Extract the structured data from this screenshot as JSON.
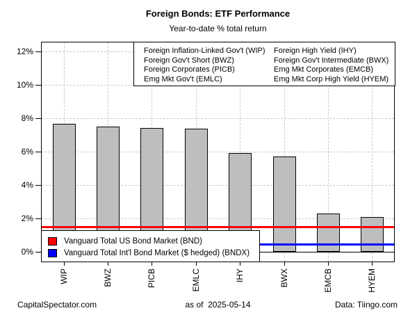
{
  "header": {
    "title": "Foreign Bonds: ETF Performance",
    "subtitle": "Year-to-date % total return"
  },
  "footer": {
    "left": "CapitalSpectator.com",
    "center": "as of  2025-05-14",
    "right": "Data: Tiingo.com"
  },
  "etf_legend": {
    "left_column": [
      "Foreign Inflation-Linked Gov't (WIP)",
      "Foreign Gov't Short (BWZ)",
      "Foreign Corporates (PICB)",
      "Emg Mkt Gov't (EMLC)"
    ],
    "right_column": [
      "Foreign High Yield (IHY)",
      "Foreign Gov't Intermediate (BWX)",
      "Emg Mkt Corporates (EMCB)",
      "Emg Mkt Corp High Yield (HYEM)"
    ]
  },
  "benchmark_legend": {
    "items": [
      {
        "label": "Vanguard Total US Bond Market (BND)",
        "color": "#ff0000"
      },
      {
        "label": "Vanguard Total Int'l Bond Market ($ hedged) (BNDX)",
        "color": "#0000ff"
      }
    ]
  },
  "chart_data": {
    "type": "bar",
    "title": "Foreign Bonds: ETF Performance",
    "subtitle": "Year-to-date % total return",
    "xlabel": "",
    "ylabel": "",
    "categories": [
      "WIP",
      "BWZ",
      "PICB",
      "EMLC",
      "IHY",
      "BWX",
      "EMCB",
      "HYEM"
    ],
    "values": [
      7.65,
      7.5,
      7.42,
      7.38,
      5.9,
      5.7,
      2.3,
      2.1
    ],
    "ylim": [
      -0.6,
      12.6
    ],
    "yticks": [
      0,
      2,
      4,
      6,
      8,
      10,
      12
    ],
    "ytick_labels": [
      "0%",
      "2%",
      "4%",
      "6%",
      "8%",
      "10%",
      "12%"
    ],
    "grid": true,
    "bar_color": "#bebebe",
    "bar_border": "#000000",
    "grid_color": "#c8c8c8",
    "reference_lines": [
      {
        "name": "Vanguard Total US Bond Market (BND)",
        "value": 1.5,
        "color": "#ff0000"
      },
      {
        "name": "Vanguard Total Int'l Bond Market ($ hedged) (BNDX)",
        "value": 0.45,
        "color": "#0000ff"
      }
    ],
    "legend_position": "top-right-box-and-bottom-left-box"
  }
}
